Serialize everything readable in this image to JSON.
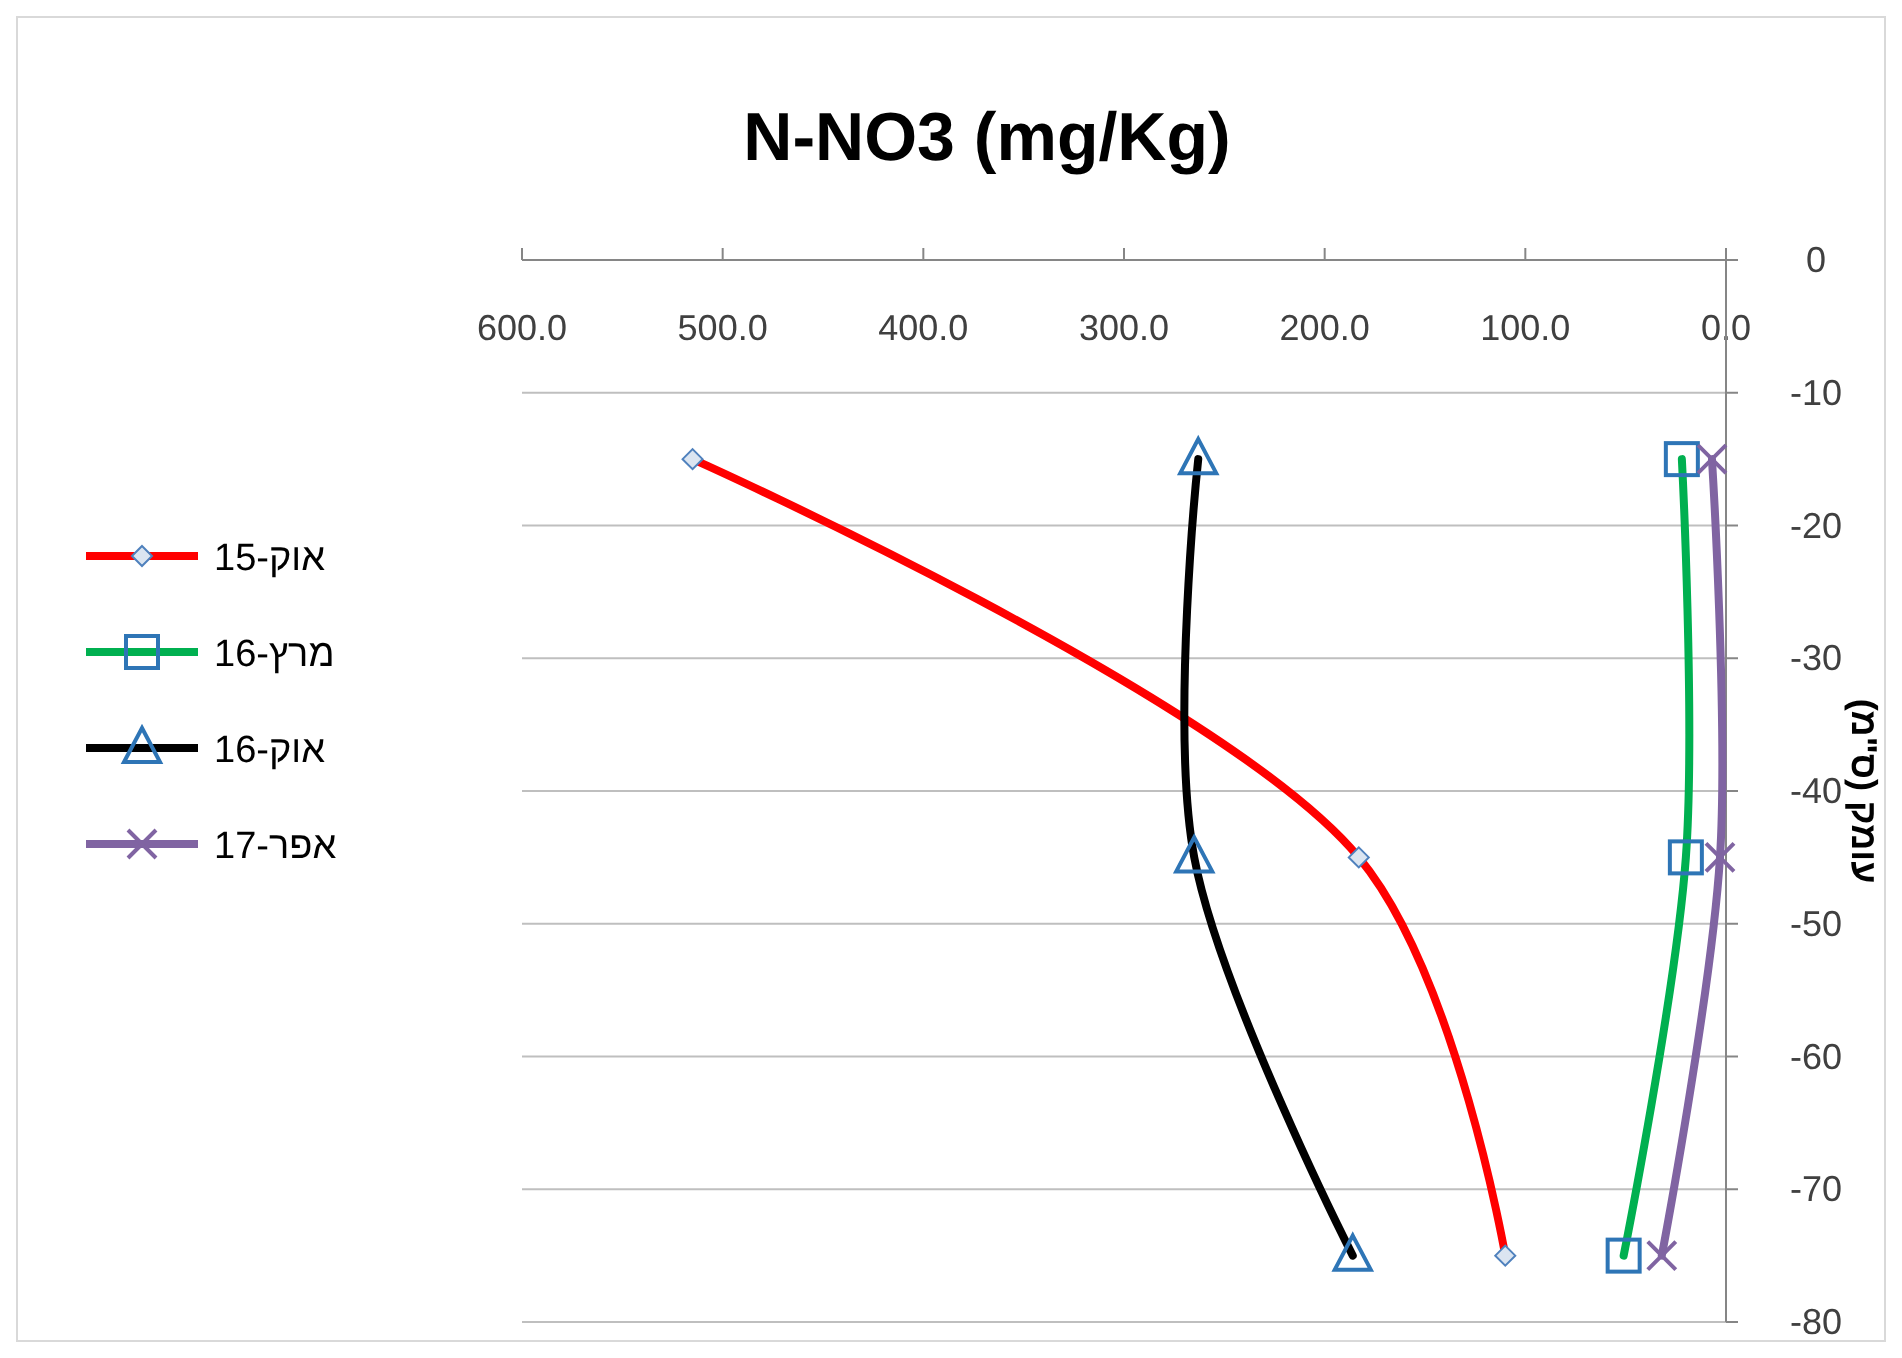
{
  "chart_data": {
    "type": "line",
    "title": "N-NO3 (mg/Kg)",
    "ylabel": "עומק (ס\"מ)",
    "xlim": [
      600,
      0
    ],
    "xticks": [
      {
        "value": 600,
        "label": "600.0"
      },
      {
        "value": 500,
        "label": "500.0"
      },
      {
        "value": 400,
        "label": "400.0"
      },
      {
        "value": 300,
        "label": "300.0"
      },
      {
        "value": 200,
        "label": "200.0"
      },
      {
        "value": 100,
        "label": "100.0"
      },
      {
        "value": 0,
        "label": "0.0"
      }
    ],
    "ylim": [
      -80,
      0
    ],
    "yticks": [
      0,
      -10,
      -20,
      -30,
      -40,
      -50,
      -60,
      -70,
      -80
    ],
    "grid": "y",
    "legend": "left",
    "series": [
      {
        "name": "אוק-15",
        "color": "#ff0000",
        "marker": "diamond",
        "x": [
          515,
          183,
          110
        ],
        "values": [
          -15,
          -45,
          -75
        ]
      },
      {
        "name": "מרץ-16",
        "color": "#00b050",
        "marker": "square",
        "x": [
          22,
          20,
          51
        ],
        "values": [
          -15,
          -45,
          -75
        ]
      },
      {
        "name": "אוק-16",
        "color": "#000000",
        "marker": "triangle",
        "x": [
          263,
          265,
          186
        ],
        "values": [
          -15,
          -45,
          -75
        ]
      },
      {
        "name": "אפר-17",
        "color": "#8064a2",
        "marker": "cross",
        "x": [
          7,
          3,
          32
        ],
        "values": [
          -15,
          -45,
          -75
        ]
      }
    ]
  }
}
